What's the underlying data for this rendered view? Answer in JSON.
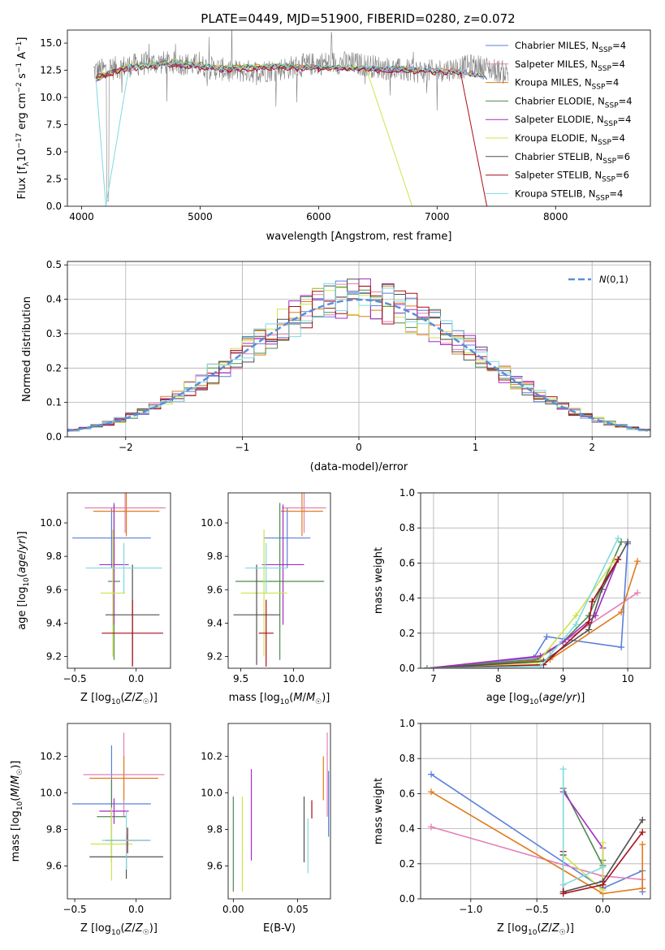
{
  "figure_title": "PLATE=0449, MJD=51900, FIBERID=0280, z=0.072",
  "colors": {
    "Chabrier MILES": "#5b7fdc",
    "Salpeter MILES": "#e47fb8",
    "Kroupa MILES": "#e07b1a",
    "Chabrier ELODIE": "#4e8a4e",
    "Salpeter ELODIE": "#a52bc5",
    "Kroupa ELODIE": "#cce34a",
    "Chabrier STELIB": "#505050",
    "Salpeter STELIB": "#a80f18",
    "Kroupa STELIB": "#7fd9e0",
    "data": "#7f7f7f",
    "gaussian": "#5b8ed6"
  },
  "chart_data": [
    {
      "id": "spectrum",
      "type": "line",
      "title": "PLATE=0449, MJD=51900, FIBERID=0280, z=0.072",
      "xlabel": "wavelength [Angstrom, rest frame]",
      "ylabel": "Flux [f_λ 10^-17 erg cm^-2 s^-1 A^-1]",
      "xlim": [
        3880,
        8800
      ],
      "ylim": [
        0,
        16.2
      ],
      "xticks": [
        4000,
        5000,
        6000,
        7000,
        8000
      ],
      "yticks": [
        "0.0",
        "2.5",
        "5.0",
        "7.5",
        "10.0",
        "12.5",
        "15.0"
      ],
      "legend_position": "upper right",
      "series": [
        {
          "name": "Chabrier MILES",
          "nssp": "N_SSP=4",
          "x": [
            4120,
            4400,
            4800,
            5200,
            5600,
            6000,
            6400,
            6800,
            7200,
            7400
          ],
          "y": [
            11.8,
            12.8,
            13.2,
            12.7,
            12.9,
            12.8,
            12.7,
            12.6,
            12.4,
            12.0
          ]
        },
        {
          "name": "Salpeter MILES",
          "nssp": "N_SSP=4",
          "x": [
            4120,
            4400,
            4800,
            5200,
            5600,
            6000,
            6400,
            6800,
            7200,
            7400
          ],
          "y": [
            11.7,
            12.7,
            13.1,
            12.6,
            12.8,
            12.7,
            12.6,
            12.5,
            12.3,
            11.9
          ]
        },
        {
          "name": "Kroupa MILES",
          "nssp": "N_SSP=4",
          "x": [
            4120,
            4400,
            4800,
            5200,
            5600,
            6000,
            6400,
            6800,
            7200,
            7400
          ],
          "y": [
            11.8,
            12.8,
            13.2,
            12.7,
            12.9,
            12.8,
            12.7,
            12.6,
            12.4,
            12.0
          ]
        },
        {
          "name": "Chabrier ELODIE",
          "nssp": "N_SSP=4",
          "x": [
            4120,
            4400,
            4800,
            5200,
            5600,
            6000,
            6400,
            6800
          ],
          "y": [
            11.7,
            12.9,
            13.3,
            12.7,
            12.9,
            12.8,
            12.7,
            12.6
          ]
        },
        {
          "name": "Salpeter ELODIE",
          "nssp": "N_SSP=4",
          "x": [
            4120,
            4400,
            4800,
            5200,
            5600,
            6000,
            6400,
            6800
          ],
          "y": [
            11.6,
            12.8,
            13.2,
            12.6,
            12.8,
            12.7,
            12.6,
            12.5
          ]
        },
        {
          "name": "Kroupa ELODIE",
          "nssp": "N_SSP=4",
          "x": [
            4120,
            4400,
            4800,
            5200,
            5600,
            6000,
            6400,
            6790
          ],
          "y": [
            11.7,
            12.9,
            13.3,
            12.7,
            12.9,
            12.8,
            12.7,
            0.0
          ]
        },
        {
          "name": "Chabrier STELIB",
          "nssp": "N_SSP=6",
          "x": [
            4120,
            4400,
            4800,
            5200,
            5600,
            6000,
            6400,
            6800,
            7200,
            7420
          ],
          "y": [
            11.9,
            12.7,
            13.0,
            12.6,
            12.8,
            12.7,
            12.6,
            12.5,
            12.3,
            11.9
          ]
        },
        {
          "name": "Salpeter STELIB",
          "nssp": "N_SSP=6",
          "x": [
            4120,
            4400,
            4800,
            5200,
            5600,
            6000,
            6400,
            6800,
            7200,
            7420
          ],
          "y": [
            11.8,
            12.6,
            12.9,
            12.5,
            12.7,
            12.6,
            12.5,
            12.4,
            12.2,
            0.0
          ]
        },
        {
          "name": "Kroupa STELIB",
          "nssp": "N_SSP=4",
          "x": [
            4120,
            4205,
            4400,
            4800,
            5200,
            5600,
            6000,
            6400,
            6800,
            7200,
            7400
          ],
          "y": [
            11.8,
            0.0,
            12.8,
            13.2,
            12.7,
            12.9,
            12.8,
            12.7,
            12.6,
            12.4,
            12.0
          ]
        }
      ],
      "observed": {
        "name": "data",
        "xrange": [
          4100,
          7600
        ],
        "continuum_y": 12.8,
        "noise_sd": 1.1
      }
    },
    {
      "id": "residuals",
      "type": "histogram",
      "xlabel": "(data-model)/error",
      "ylabel": "Normed distribution",
      "xlim": [
        -2.5,
        2.5
      ],
      "ylim": [
        0,
        0.51
      ],
      "xticks": [
        "−2",
        "−1",
        "0",
        "1",
        "2"
      ],
      "yticks": [
        "0.0",
        "0.1",
        "0.2",
        "0.3",
        "0.4",
        "0.5"
      ],
      "grid": true,
      "legend_position": "upper right",
      "legend": "N(0,1)",
      "bin_width": 0.1,
      "bin_start": -2.5
    },
    {
      "id": "age-vs-z",
      "type": "errorbar",
      "xlabel": "Z [log10(Z/Z☉)]",
      "ylabel": "age [log10(age/yr)]",
      "xlim": [
        -0.56,
        0.28
      ],
      "ylim": [
        9.13,
        10.18
      ],
      "xticks": [
        "−0.5",
        "0.0"
      ],
      "yticks": [
        "9.2",
        "9.4",
        "9.6",
        "9.8",
        "10.0"
      ],
      "points": [
        {
          "series": "Chabrier MILES",
          "x": -0.2,
          "xerr": 0.32,
          "y": 9.91,
          "yerr": 0.18
        },
        {
          "series": "Salpeter MILES",
          "x": -0.09,
          "xerr": 0.33,
          "y": 10.09,
          "yerr": 0.15
        },
        {
          "series": "Kroupa MILES",
          "x": -0.08,
          "xerr": 0.27,
          "y": 10.07,
          "yerr": 0.15
        },
        {
          "series": "Chabrier ELODIE",
          "x": -0.18,
          "xerr": 0.05,
          "y": 9.65,
          "yerr": 0.47
        },
        {
          "series": "Salpeter ELODIE",
          "x": -0.18,
          "xerr": 0.12,
          "y": 9.75,
          "yerr": 0.36
        },
        {
          "series": "Kroupa ELODIE",
          "x": -0.19,
          "xerr": 0.1,
          "y": 9.58,
          "yerr": 0.38
        },
        {
          "series": "Chabrier STELIB",
          "x": -0.03,
          "xerr": 0.22,
          "y": 9.45,
          "yerr": 0.3
        },
        {
          "series": "Salpeter STELIB",
          "x": -0.03,
          "xerr": 0.25,
          "y": 9.34,
          "yerr": 0.2
        },
        {
          "series": "Kroupa STELIB",
          "x": -0.1,
          "xerr": 0.31,
          "y": 9.73,
          "yerr": 0.15
        }
      ]
    },
    {
      "id": "age-vs-mass",
      "type": "errorbar",
      "xlabel": "mass [log10(M/M☉)]",
      "xlim": [
        9.38,
        10.35
      ],
      "ylim": [
        9.13,
        10.18
      ],
      "xticks": [
        "9.5",
        "10.0"
      ],
      "yticks": [
        "9.2",
        "9.4",
        "9.6",
        "9.8",
        "10.0"
      ],
      "points": [
        {
          "series": "Chabrier MILES",
          "x": 9.94,
          "xerr": 0.22,
          "y": 9.91,
          "yerr": 0.18
        },
        {
          "series": "Salpeter MILES",
          "x": 10.1,
          "xerr": 0.21,
          "y": 10.09,
          "yerr": 0.15
        },
        {
          "series": "Kroupa MILES",
          "x": 10.08,
          "xerr": 0.2,
          "y": 10.07,
          "yerr": 0.15
        },
        {
          "series": "Chabrier ELODIE",
          "x": 9.87,
          "xerr": 0.42,
          "y": 9.65,
          "yerr": 0.47
        },
        {
          "series": "Salpeter ELODIE",
          "x": 9.9,
          "xerr": 0.2,
          "y": 9.75,
          "yerr": 0.36
        },
        {
          "series": "Kroupa ELODIE",
          "x": 9.72,
          "xerr": 0.22,
          "y": 9.58,
          "yerr": 0.38
        },
        {
          "series": "Chabrier STELIB",
          "x": 9.65,
          "xerr": 0.22,
          "y": 9.45,
          "yerr": 0.3
        },
        {
          "series": "Salpeter STELIB",
          "x": 9.74,
          "xerr": 0.07,
          "y": 9.34,
          "yerr": 0.2
        },
        {
          "series": "Kroupa STELIB",
          "x": 9.74,
          "xerr": 0.2,
          "y": 9.73,
          "yerr": 0.15
        }
      ]
    },
    {
      "id": "mass-weight-vs-age",
      "type": "line",
      "xlabel": "age [log10(age/yr)]",
      "ylabel": "mass weight",
      "xlim": [
        6.8,
        10.35
      ],
      "ylim": [
        0,
        1
      ],
      "xticks": [
        "7",
        "8",
        "9",
        "10"
      ],
      "yticks": [
        "0.0",
        "0.2",
        "0.4",
        "0.6",
        "0.8",
        "1.0"
      ],
      "grid": true,
      "series": [
        {
          "name": "Chabrier MILES",
          "x": [
            6.9,
            8.55,
            8.75,
            9.9,
            10.0
          ],
          "y": [
            0.0,
            0.06,
            0.18,
            0.12,
            0.71
          ]
        },
        {
          "name": "Salpeter MILES",
          "x": [
            6.9,
            8.55,
            8.8,
            10.15
          ],
          "y": [
            0.0,
            0.05,
            0.1,
            0.43
          ]
        },
        {
          "name": "Kroupa MILES",
          "x": [
            6.9,
            8.8,
            9.9,
            10.15
          ],
          "y": [
            0.0,
            0.05,
            0.32,
            0.61
          ]
        },
        {
          "name": "Chabrier ELODIE",
          "x": [
            6.9,
            8.6,
            9.0,
            9.4,
            9.9
          ],
          "y": [
            0.0,
            0.05,
            0.15,
            0.3,
            0.72
          ]
        },
        {
          "name": "Salpeter ELODIE",
          "x": [
            6.9,
            8.65,
            9.0,
            9.5,
            9.85
          ],
          "y": [
            0.0,
            0.07,
            0.15,
            0.3,
            0.62
          ]
        },
        {
          "name": "Kroupa ELODIE",
          "x": [
            6.9,
            8.6,
            9.2,
            9.8
          ],
          "y": [
            0.0,
            0.03,
            0.3,
            0.62
          ]
        },
        {
          "name": "Chabrier STELIB",
          "x": [
            6.9,
            8.7,
            9.4,
            9.6,
            10.0
          ],
          "y": [
            0.0,
            0.04,
            0.22,
            0.45,
            0.72
          ]
        },
        {
          "name": "Salpeter STELIB",
          "x": [
            6.9,
            8.7,
            9.4,
            9.45,
            9.85
          ],
          "y": [
            0.0,
            0.02,
            0.26,
            0.38,
            0.62
          ]
        },
        {
          "name": "Kroupa STELIB",
          "x": [
            6.9,
            8.65,
            9.2,
            9.85
          ],
          "y": [
            0.0,
            0.01,
            0.25,
            0.74
          ]
        }
      ]
    },
    {
      "id": "mass-vs-z",
      "type": "errorbar",
      "xlabel": "Z [log10(Z/Z☉)]",
      "ylabel": "mass [log10(M/M☉)]",
      "xlim": [
        -0.56,
        0.28
      ],
      "ylim": [
        9.42,
        10.38
      ],
      "xticks": [
        "−0.5",
        "0.0"
      ],
      "yticks": [
        "9.6",
        "9.8",
        "10.0",
        "10.2"
      ],
      "points": [
        {
          "series": "Chabrier MILES",
          "x": -0.2,
          "xerr": 0.32,
          "y": 9.94,
          "yerr": 0.32
        },
        {
          "series": "Salpeter MILES",
          "x": -0.1,
          "xerr": 0.33,
          "y": 10.1,
          "yerr": 0.23
        },
        {
          "series": "Kroupa MILES",
          "x": -0.1,
          "xerr": 0.28,
          "y": 10.08,
          "yerr": 0.12
        },
        {
          "series": "Chabrier ELODIE",
          "x": -0.2,
          "xerr": 0.12,
          "y": 9.87,
          "yerr": 0.2
        },
        {
          "series": "Salpeter ELODIE",
          "x": -0.18,
          "xerr": 0.12,
          "y": 9.9,
          "yerr": 0.07
        },
        {
          "series": "Kroupa ELODIE",
          "x": -0.2,
          "xerr": 0.17,
          "y": 9.72,
          "yerr": 0.2
        },
        {
          "series": "Chabrier STELIB",
          "x": -0.08,
          "xerr": 0.3,
          "y": 9.65,
          "yerr": 0.12
        },
        {
          "series": "Salpeter STELIB",
          "x": -0.07,
          "xerr": 0.18,
          "y": 9.74,
          "yerr": 0.07
        },
        {
          "series": "Kroupa STELIB",
          "x": -0.08,
          "xerr": 0.2,
          "y": 9.74,
          "yerr": 0.16
        }
      ]
    },
    {
      "id": "mass-vs-ebv",
      "type": "errorbar",
      "xlabel": "E(B-V)",
      "xlim": [
        -0.004,
        0.0755
      ],
      "ylim": [
        9.42,
        10.38
      ],
      "xticks": [
        "0.00",
        "0.05"
      ],
      "yticks": [
        "9.6",
        "9.8",
        "10.0",
        "10.2"
      ],
      "points": [
        {
          "series": "Chabrier MILES",
          "x": 0.074,
          "xerr": 0.0,
          "y": 9.94,
          "yerr": 0.18
        },
        {
          "series": "Salpeter MILES",
          "x": 0.073,
          "xerr": 0.0,
          "y": 10.1,
          "yerr": 0.23
        },
        {
          "series": "Kroupa MILES",
          "x": 0.07,
          "xerr": 0.0,
          "y": 10.08,
          "yerr": 0.12
        },
        {
          "series": "Chabrier ELODIE",
          "x": 0.0,
          "xerr": 0.0,
          "y": 9.72,
          "yerr": 0.26
        },
        {
          "series": "Salpeter ELODIE",
          "x": 0.014,
          "xerr": 0.0,
          "y": 9.88,
          "yerr": 0.25
        },
        {
          "series": "Kroupa ELODIE",
          "x": 0.007,
          "xerr": 0.0,
          "y": 9.72,
          "yerr": 0.26
        },
        {
          "series": "Chabrier STELIB",
          "x": 0.055,
          "xerr": 0.0,
          "y": 9.8,
          "yerr": 0.18
        },
        {
          "series": "Salpeter STELIB",
          "x": 0.061,
          "xerr": 0.0,
          "y": 9.91,
          "yerr": 0.05
        },
        {
          "series": "Kroupa STELIB",
          "x": 0.058,
          "xerr": 0.0,
          "y": 9.71,
          "yerr": 0.15
        }
      ]
    },
    {
      "id": "mass-weight-vs-z",
      "type": "line",
      "xlabel": "Z [log10(Z/Z☉)]",
      "ylabel": "mass weight",
      "xlim": [
        -1.38,
        0.36
      ],
      "ylim": [
        0,
        1
      ],
      "xticks": [
        "−1.0",
        "−0.5",
        "0.0"
      ],
      "yticks": [
        "0.0",
        "0.2",
        "0.4",
        "0.6",
        "0.8",
        "1.0"
      ],
      "grid": true,
      "series": [
        {
          "name": "Chabrier MILES",
          "x": [
            -1.3,
            0.0,
            0.3,
            0.3
          ],
          "y": [
            0.71,
            0.06,
            0.16,
            0.04
          ]
        },
        {
          "name": "Salpeter MILES",
          "x": [
            -1.3,
            0.0,
            0.3,
            0.3
          ],
          "y": [
            0.41,
            0.13,
            0.11,
            0.06
          ]
        },
        {
          "name": "Kroupa MILES",
          "x": [
            -1.3,
            0.0,
            0.3,
            0.3
          ],
          "y": [
            0.61,
            0.03,
            0.06,
            0.31
          ]
        },
        {
          "name": "Chabrier ELODIE",
          "x": [
            -0.3,
            0.0,
            0.0
          ],
          "y": [
            0.63,
            0.19,
            0.22
          ]
        },
        {
          "name": "Salpeter ELODIE",
          "x": [
            -0.3,
            0.0,
            0.0
          ],
          "y": [
            0.61,
            0.29,
            0.1
          ]
        },
        {
          "name": "Kroupa ELODIE",
          "x": [
            -0.3,
            0.0,
            0.0
          ],
          "y": [
            0.25,
            0.05,
            0.32
          ]
        },
        {
          "name": "Chabrier STELIB",
          "x": [
            -0.3,
            -0.3,
            0.0,
            0.3
          ],
          "y": [
            0.25,
            0.04,
            0.1,
            0.45
          ]
        },
        {
          "name": "Salpeter STELIB",
          "x": [
            -0.3,
            -0.3,
            0.0,
            0.3
          ],
          "y": [
            0.27,
            0.03,
            0.08,
            0.38
          ]
        },
        {
          "name": "Kroupa STELIB",
          "x": [
            -0.3,
            -0.3,
            0.0
          ],
          "y": [
            0.74,
            0.08,
            0.18
          ]
        }
      ]
    }
  ]
}
